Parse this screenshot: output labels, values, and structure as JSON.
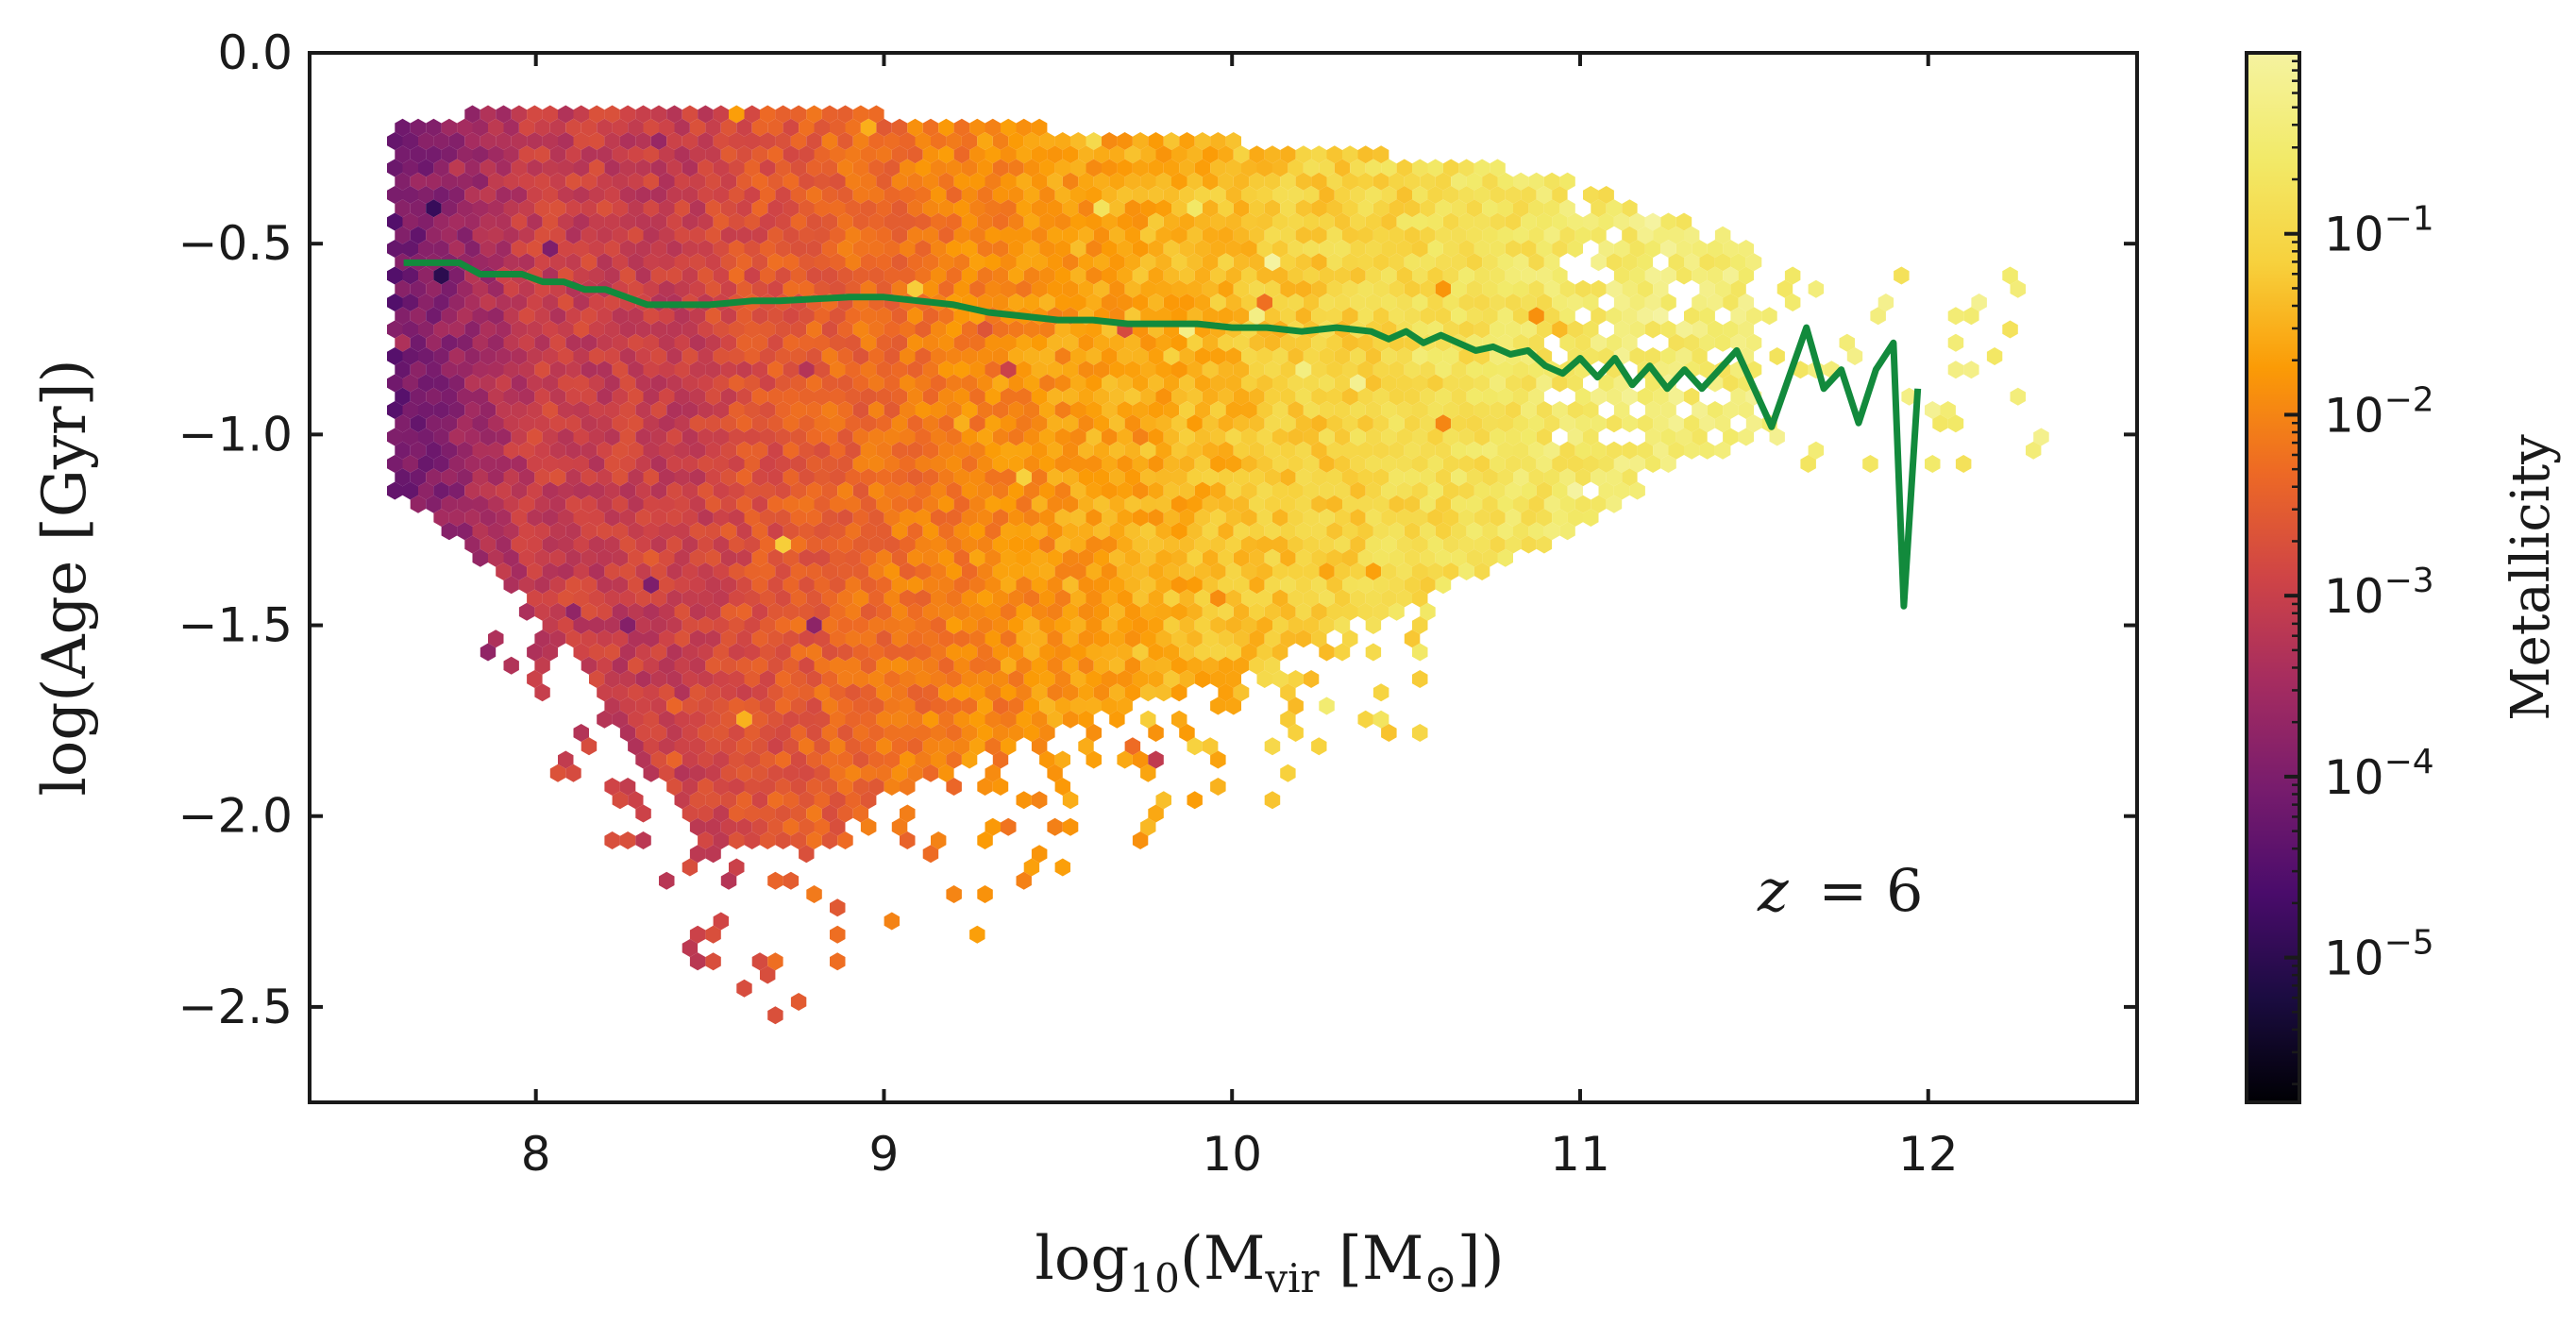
{
  "chart_data": {
    "type": "hexbin",
    "xlabel_parts": [
      "log",
      "10",
      "(M",
      "vir",
      " [M",
      "⊙",
      "])"
    ],
    "ylabel": "log(Age [Gyr])",
    "colorbar_label": "Metallicity",
    "annotation": {
      "lhs": "z",
      "rhs": "= 6"
    },
    "xlim": [
      7.35,
      12.6
    ],
    "ylim": [
      -2.75,
      0.0
    ],
    "xticks": [
      8,
      9,
      10,
      11,
      12
    ],
    "yticks": [
      0.0,
      -0.5,
      -1.0,
      -1.5,
      -2.0,
      -2.5
    ],
    "ytick_labels": [
      "0.0",
      "−0.5",
      "−1.0",
      "−1.5",
      "−2.0",
      "−2.5"
    ],
    "colorbar": {
      "scale": "log",
      "colormap": "inferno",
      "range_log10": [
        -5.8,
        0.0
      ],
      "tick_exponents": [
        -1,
        -2,
        -3,
        -4,
        -5
      ]
    },
    "density_shape": {
      "upper_envelope": [
        [
          7.6,
          -0.17
        ],
        [
          8.2,
          -0.14
        ],
        [
          9.0,
          -0.16
        ],
        [
          9.5,
          -0.2
        ],
        [
          10.0,
          -0.23
        ],
        [
          10.5,
          -0.27
        ],
        [
          11.0,
          -0.33
        ],
        [
          11.5,
          -0.5
        ]
      ],
      "lower_envelope": [
        [
          7.6,
          -1.15
        ],
        [
          8.0,
          -1.45
        ],
        [
          8.3,
          -1.85
        ],
        [
          8.5,
          -2.1
        ],
        [
          8.8,
          -2.08
        ],
        [
          9.0,
          -1.95
        ],
        [
          9.5,
          -1.78
        ],
        [
          10.0,
          -1.62
        ],
        [
          10.5,
          -1.45
        ],
        [
          11.0,
          -1.25
        ],
        [
          11.5,
          -1.0
        ]
      ]
    },
    "median_line": {
      "name": "median age",
      "color": "#128a3c",
      "x": [
        7.62,
        7.66,
        7.7,
        7.78,
        7.84,
        7.9,
        7.96,
        8.02,
        8.08,
        8.14,
        8.2,
        8.26,
        8.32,
        8.38,
        8.44,
        8.5,
        8.56,
        8.62,
        8.7,
        8.8,
        8.9,
        9.0,
        9.1,
        9.2,
        9.3,
        9.4,
        9.5,
        9.6,
        9.7,
        9.8,
        9.9,
        10.0,
        10.1,
        10.2,
        10.3,
        10.4,
        10.45,
        10.5,
        10.55,
        10.6,
        10.65,
        10.7,
        10.75,
        10.8,
        10.85,
        10.9,
        10.95,
        11.0,
        11.05,
        11.1,
        11.15,
        11.2,
        11.25,
        11.3,
        11.35,
        11.4,
        11.45,
        11.5,
        11.55,
        11.6,
        11.65,
        11.7,
        11.75,
        11.8,
        11.85,
        11.9,
        11.93,
        11.97
      ],
      "y": [
        -0.55,
        -0.55,
        -0.55,
        -0.55,
        -0.58,
        -0.58,
        -0.58,
        -0.6,
        -0.6,
        -0.62,
        -0.62,
        -0.64,
        -0.66,
        -0.66,
        -0.66,
        -0.66,
        -0.655,
        -0.65,
        -0.65,
        -0.645,
        -0.64,
        -0.64,
        -0.65,
        -0.66,
        -0.68,
        -0.69,
        -0.7,
        -0.7,
        -0.71,
        -0.71,
        -0.71,
        -0.72,
        -0.72,
        -0.73,
        -0.72,
        -0.73,
        -0.75,
        -0.73,
        -0.76,
        -0.74,
        -0.76,
        -0.78,
        -0.77,
        -0.79,
        -0.78,
        -0.82,
        -0.84,
        -0.8,
        -0.85,
        -0.8,
        -0.87,
        -0.82,
        -0.88,
        -0.83,
        -0.88,
        -0.83,
        -0.78,
        -0.88,
        -0.98,
        -0.85,
        -0.72,
        -0.88,
        -0.83,
        -0.97,
        -0.83,
        -0.76,
        -1.45,
        -0.88
      ]
    }
  }
}
